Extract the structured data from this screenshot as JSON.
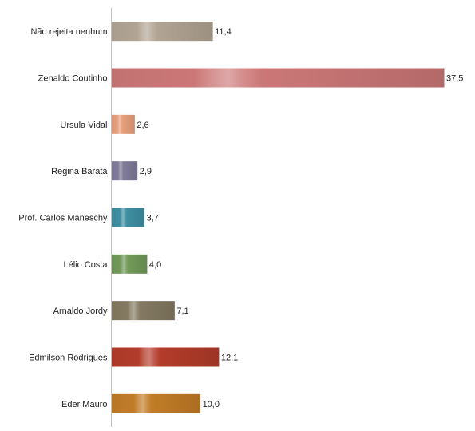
{
  "chart_data": {
    "type": "bar",
    "orientation": "horizontal",
    "title": "",
    "xlabel": "",
    "ylabel": "",
    "xlim": [
      0,
      37.5
    ],
    "grid": false,
    "legend": "none",
    "categories": [
      "Não rejeita nenhum",
      "Zenaldo Coutinho",
      "Ursula Vidal",
      "Regina Barata",
      "Prof. Carlos Maneschy",
      "Lélio Costa",
      "Arnaldo Jordy",
      "Edmilson Rodrigues",
      "Eder Mauro"
    ],
    "values": [
      11.4,
      37.5,
      2.6,
      2.9,
      3.7,
      4.0,
      7.1,
      12.1,
      10.0
    ],
    "value_labels": [
      "11,4",
      "37,5",
      "2,6",
      "2,9",
      "3,7",
      "4,0",
      "7,1",
      "12,1",
      "10,0"
    ],
    "colors": [
      "#b1a493",
      "#cc7777",
      "#e8a07c",
      "#7f7b99",
      "#3f8ea2",
      "#739a5a",
      "#847a62",
      "#b33c2a",
      "#c17c27"
    ]
  }
}
